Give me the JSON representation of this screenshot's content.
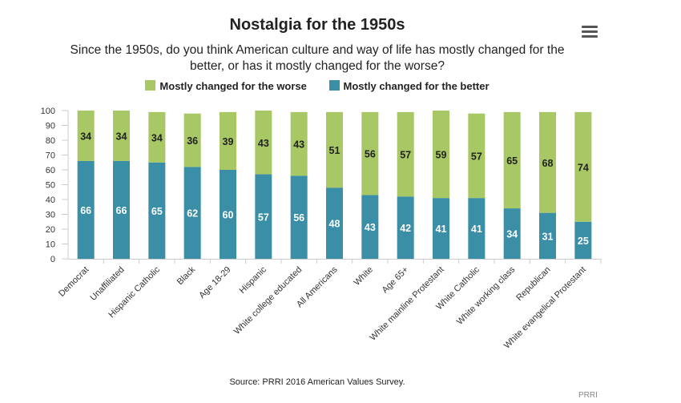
{
  "chart_data": {
    "type": "bar",
    "stacked": true,
    "title": "Nostalgia for the 1950s",
    "subtitle": "Since the 1950s, do you think American culture and way of life has mostly changed for the better, or has it mostly changed for the worse?",
    "categories": [
      "Democrat",
      "Unaffiliated",
      "Hispanic Catholic",
      "Black",
      "Age 18-29",
      "Hispanic",
      "White college educated",
      "All Americans",
      "White",
      "Age 65+",
      "White mainline Protestant",
      "White Catholic",
      "White working class",
      "Republican",
      "White evangelical Protestant"
    ],
    "series": [
      {
        "name": "Mostly changed for the worse",
        "color": "#a8c765",
        "values": [
          34,
          34,
          34,
          36,
          39,
          43,
          43,
          51,
          56,
          57,
          59,
          57,
          65,
          68,
          74
        ]
      },
      {
        "name": "Mostly changed for the better",
        "color": "#3a8ea5",
        "values": [
          66,
          66,
          65,
          62,
          60,
          57,
          56,
          48,
          43,
          42,
          41,
          41,
          34,
          31,
          25
        ]
      }
    ],
    "ylim": [
      0,
      100
    ],
    "yticks": [
      0,
      10,
      20,
      30,
      40,
      50,
      60,
      70,
      80,
      90,
      100
    ],
    "xlabel": "",
    "ylabel": "",
    "legend_position": "top-center",
    "source": "Source: PRRI 2016 American Values Survey.",
    "credit": "PRRI"
  }
}
